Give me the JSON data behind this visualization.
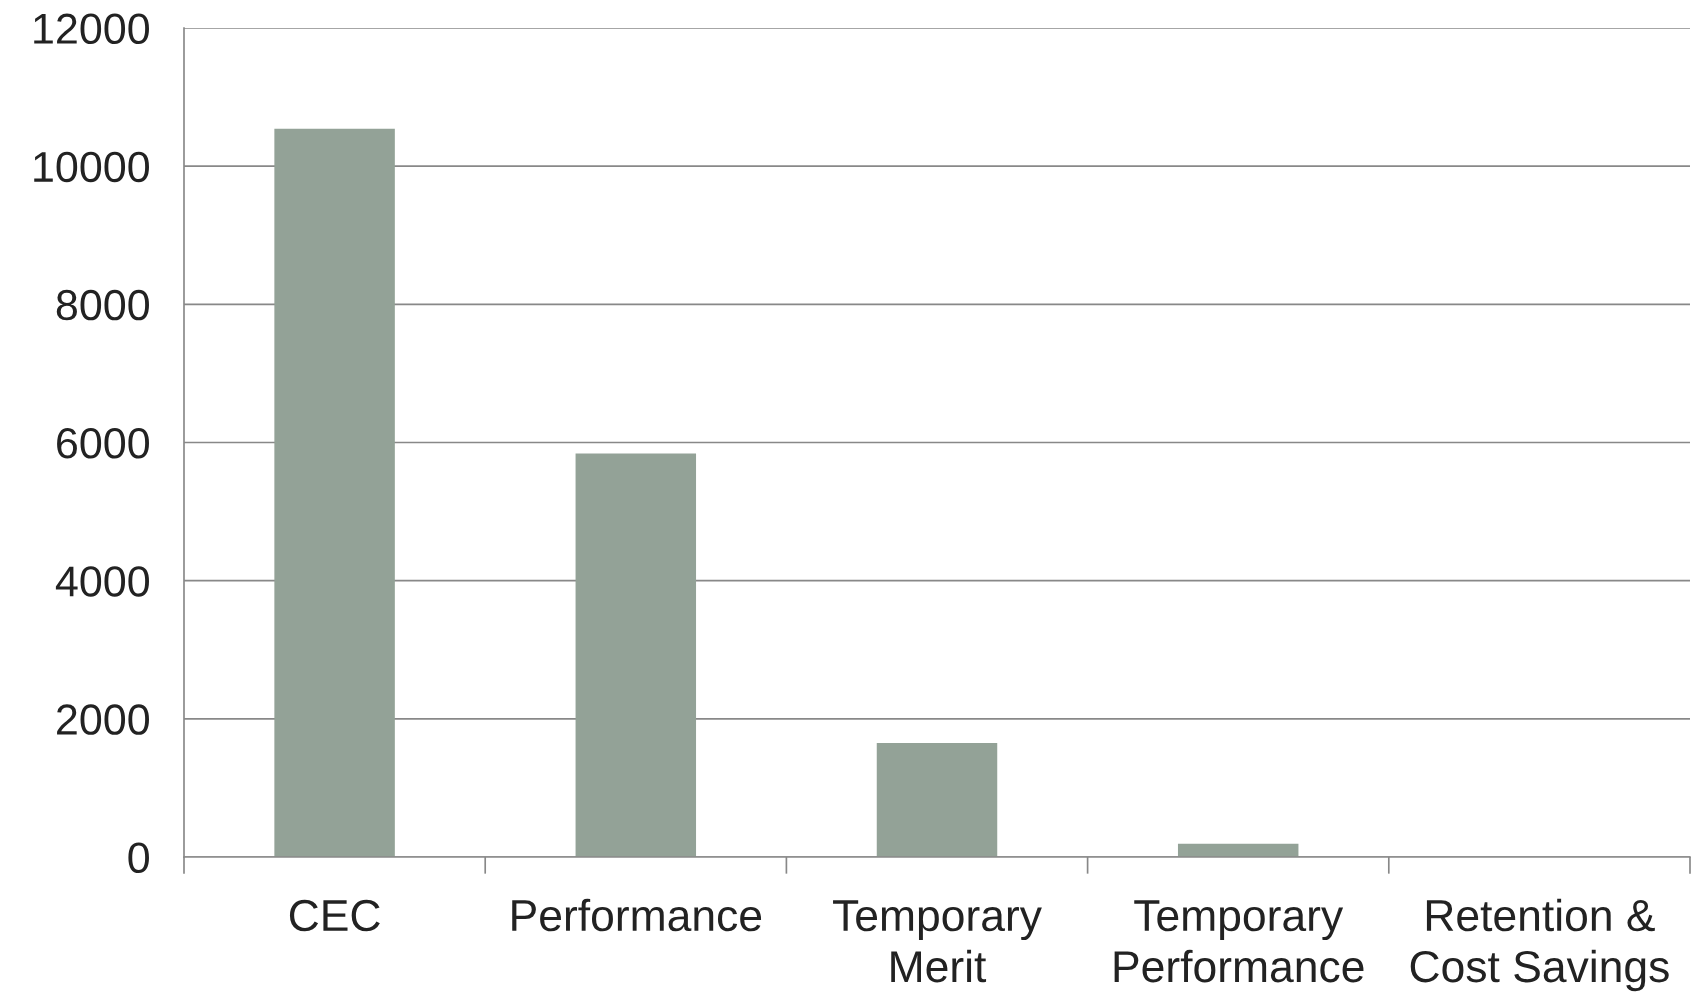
{
  "chart_data": {
    "type": "bar",
    "categories": [
      "CEC",
      "Performance",
      "Temporary Merit",
      "Temporary Performance",
      "Retention & Cost Savings"
    ],
    "values": [
      10540,
      5840,
      1650,
      190,
      0
    ],
    "color": "#93a297",
    "ylim": [
      0,
      12000
    ],
    "yticks": [
      0,
      2000,
      4000,
      6000,
      8000,
      10000,
      12000
    ],
    "grid": "y"
  }
}
